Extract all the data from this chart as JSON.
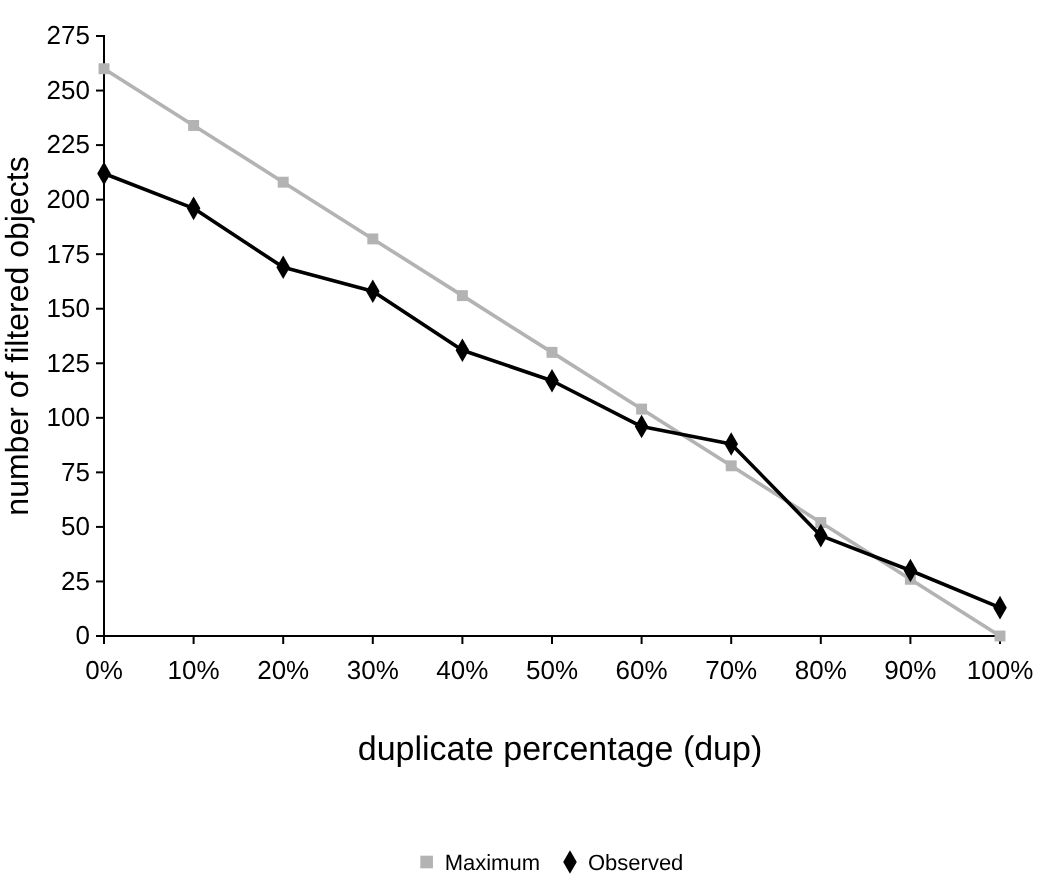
{
  "chart_data": {
    "type": "line",
    "xlabel": "duplicate percentage (dup)",
    "ylabel": "number of filtered objects",
    "categories": [
      "0%",
      "10%",
      "20%",
      "30%",
      "40%",
      "50%",
      "60%",
      "70%",
      "80%",
      "90%",
      "100%"
    ],
    "series": [
      {
        "name": "Maximum",
        "color": "#b3b3b3",
        "marker": "square",
        "values": [
          260,
          234,
          208,
          182,
          156,
          130,
          104,
          78,
          52,
          26,
          0
        ]
      },
      {
        "name": "Observed",
        "color": "#000000",
        "marker": "diamond",
        "values": [
          212,
          196,
          169,
          158,
          131,
          117,
          96,
          88,
          46,
          30,
          13
        ]
      }
    ],
    "ylim": [
      0,
      275
    ],
    "yticks": [
      0,
      25,
      50,
      75,
      100,
      125,
      150,
      175,
      200,
      225,
      250,
      275
    ],
    "grid": false,
    "legend": "bottom",
    "line_style": "solid"
  }
}
